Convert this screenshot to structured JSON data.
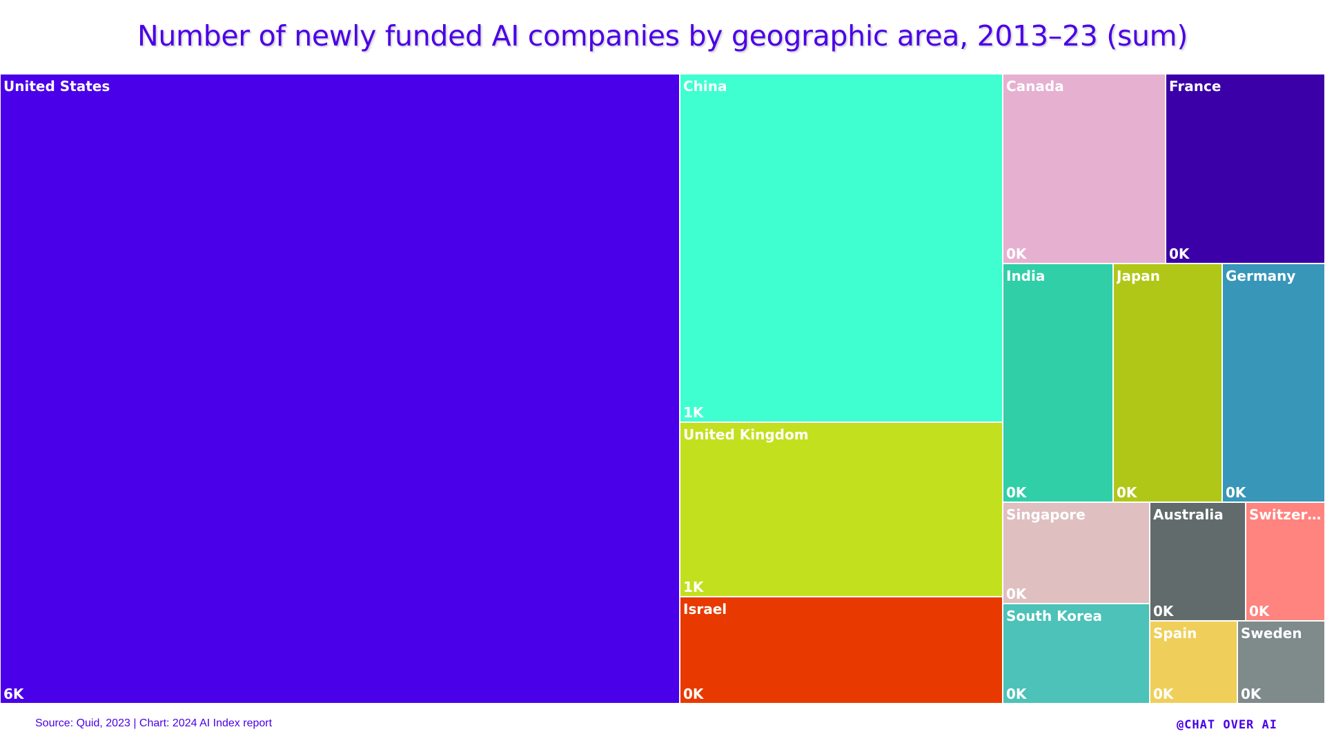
{
  "chart_data": {
    "type": "treemap",
    "title": "Number of newly funded AI companies by geographic area, 2013–23 (sum)",
    "categories": [
      "United States",
      "China",
      "United Kingdom",
      "Israel",
      "Canada",
      "France",
      "India",
      "Japan",
      "Germany",
      "Singapore",
      "South Korea",
      "Australia",
      "Switzerl…",
      "Spain",
      "Sweden"
    ],
    "values": [
      5509,
      1446,
      727,
      442,
      397,
      391,
      338,
      333,
      319,
      193,
      189,
      147,
      123,
      94,
      94
    ],
    "value_labels": [
      "6K",
      "1K",
      "1K",
      "0K",
      "0K",
      "0K",
      "0K",
      "0K",
      "0K",
      "0K",
      "0K",
      "0K",
      "0K",
      "0K",
      "0K"
    ],
    "colors": [
      "#4a00e8",
      "#3fffd0",
      "#c3e01e",
      "#e83a00",
      "#e6b0d0",
      "#3b00a8",
      "#30cfa8",
      "#b1c718",
      "#3896b8",
      "#dfbfc0",
      "#4cc2b8",
      "#616b6c",
      "#ff837e",
      "#efcf5a",
      "#7f8a8a"
    ],
    "source": "Source: Quid, 2023 | Chart: 2024 AI Index report",
    "brand": "@CHAT OVER AI"
  }
}
